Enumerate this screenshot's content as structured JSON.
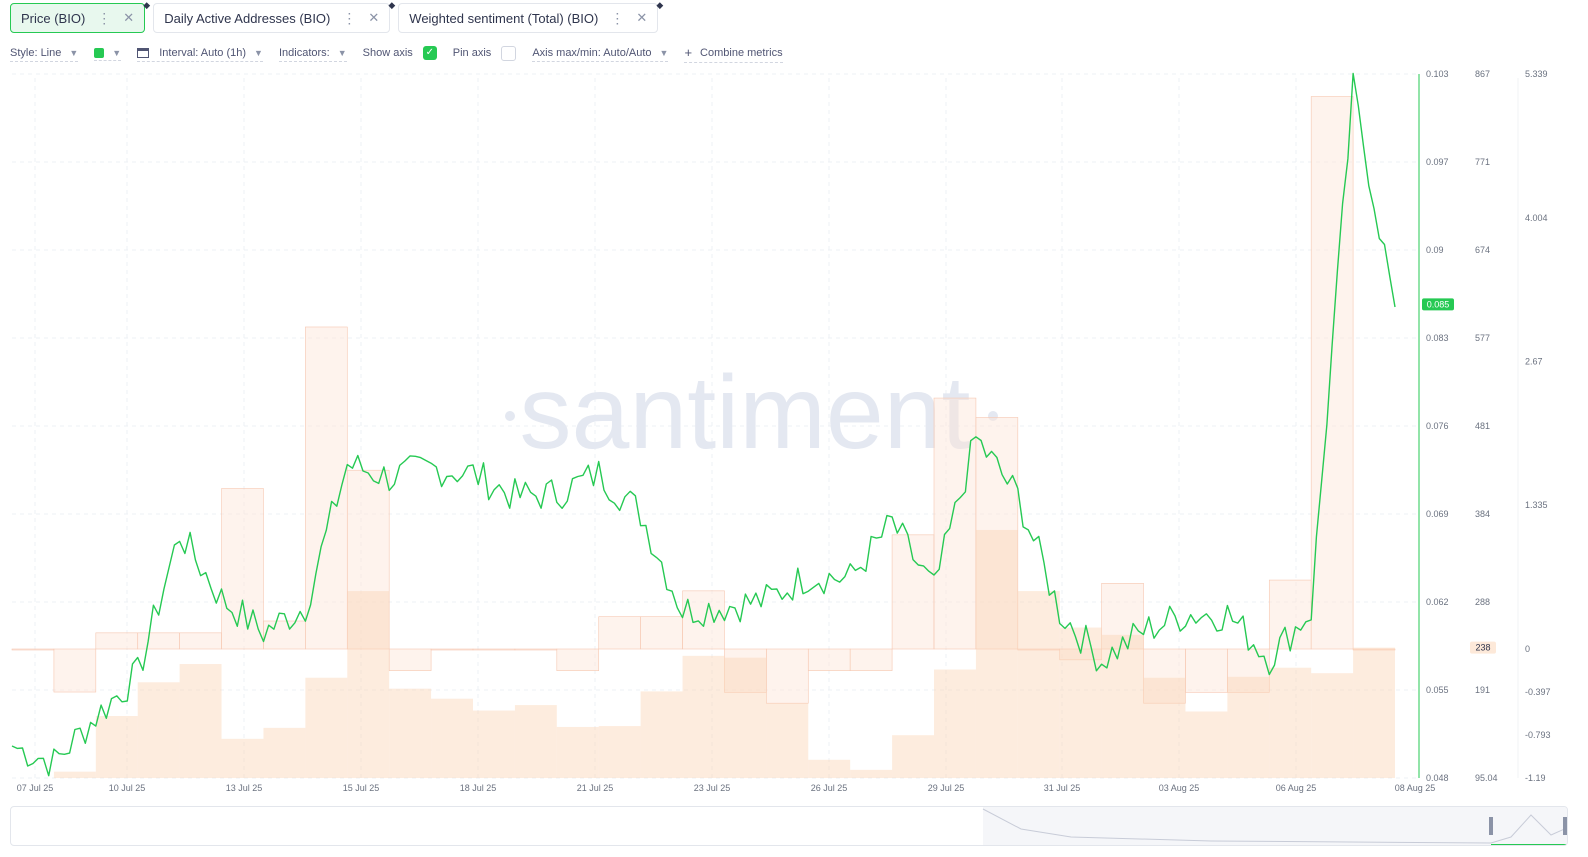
{
  "tabs": [
    {
      "label": "Price (BIO)"
    },
    {
      "label": "Daily Active Addresses (BIO)"
    },
    {
      "label": "Weighted sentiment (Total) (BIO)"
    }
  ],
  "toolbar": {
    "style": "Style: Line",
    "interval": "Interval: Auto (1h)",
    "indicators": "Indicators:",
    "show_axis": "Show axis",
    "pin_axis": "Pin axis",
    "axis_maxmin": "Axis max/min: Auto/Auto",
    "combine": "Combine metrics"
  },
  "colors": {
    "price": "#26c953",
    "sentiment_fill": "#fde4d6",
    "addresses_fill": "#fbd4b5",
    "watermark": "#e4e8f1"
  },
  "watermark": "santiment",
  "chart_data": {
    "type": "line",
    "x_ticks": [
      "07 Jul 25",
      "10 Jul 25",
      "13 Jul 25",
      "15 Jul 25",
      "18 Jul 25",
      "21 Jul 25",
      "23 Jul 25",
      "26 Jul 25",
      "29 Jul 25",
      "31 Jul 25",
      "03 Aug 25",
      "06 Aug 25",
      "08 Aug 25"
    ],
    "price_axis": {
      "ticks": [
        "0.103",
        "0.097",
        "0.09",
        "0.083",
        "0.076",
        "0.069",
        "0.062",
        "0.055",
        "0.048"
      ],
      "current": "0.085",
      "range": [
        0.048,
        0.103
      ]
    },
    "addresses_axis": {
      "ticks": [
        "867",
        "771",
        "674",
        "577",
        "481",
        "384",
        "288",
        "191",
        "95.04"
      ],
      "current": "238",
      "range": [
        95.04,
        867
      ]
    },
    "sentiment_axis": {
      "ticks": [
        "5.339",
        "4.004",
        "2.67",
        "1.335",
        "0",
        "-0.397",
        "-0.793",
        "-1.19"
      ],
      "range": [
        -1.19,
        5.339
      ]
    },
    "series": [
      {
        "name": "Price (BIO)",
        "x": [
          "07 Jul",
          "08 Jul",
          "09 Jul",
          "10 Jul",
          "11 Jul",
          "12 Jul",
          "13 Jul",
          "14 Jul",
          "15 Jul",
          "16 Jul",
          "17 Jul",
          "18 Jul",
          "19 Jul",
          "20 Jul",
          "21 Jul",
          "22 Jul",
          "23 Jul",
          "24 Jul",
          "25 Jul",
          "26 Jul",
          "27 Jul",
          "28 Jul",
          "29 Jul",
          "30 Jul",
          "31 Jul",
          "01 Aug",
          "02 Aug",
          "03 Aug",
          "04 Aug",
          "05 Aug",
          "06 Aug",
          "07 Aug",
          "07 Aug",
          "08 Aug"
        ],
        "values": [
          0.0505,
          0.0492,
          0.0528,
          0.0561,
          0.0671,
          0.062,
          0.0594,
          0.0614,
          0.0725,
          0.0715,
          0.0722,
          0.0718,
          0.07,
          0.0702,
          0.0718,
          0.0687,
          0.0611,
          0.0614,
          0.0619,
          0.0638,
          0.0636,
          0.0679,
          0.0627,
          0.0745,
          0.07,
          0.061,
          0.0572,
          0.0595,
          0.0608,
          0.0608,
          0.0574,
          0.0611,
          0.1018,
          0.0848
        ]
      },
      {
        "name": "Daily Active Addresses (BIO)",
        "x": [
          "07 Jul",
          "08 Jul",
          "09 Jul",
          "10 Jul",
          "11 Jul",
          "12 Jul",
          "13 Jul",
          "14 Jul",
          "15 Jul",
          "16 Jul",
          "17 Jul",
          "18 Jul",
          "19 Jul",
          "20 Jul",
          "21 Jul",
          "22 Jul",
          "23 Jul",
          "24 Jul",
          "25 Jul",
          "26 Jul",
          "27 Jul",
          "28 Jul",
          "29 Jul",
          "30 Jul",
          "31 Jul",
          "01 Aug",
          "02 Aug",
          "03 Aug",
          "04 Aug",
          "05 Aug",
          "06 Aug",
          "07 Aug",
          "08 Aug"
        ],
        "values": [
          95.04,
          102,
          163,
          200,
          220,
          138,
          150,
          205,
          300,
          193,
          182,
          169,
          175,
          151,
          152,
          190,
          229,
          227,
          177,
          115,
          104,
          142,
          214,
          367,
          300,
          260,
          252,
          205,
          168,
          206,
          216,
          210,
          238
        ]
      },
      {
        "name": "Weighted sentiment (Total) (BIO)",
        "x": [
          "07 Jul",
          "08 Jul",
          "09 Jul",
          "10 Jul",
          "11 Jul",
          "12 Jul",
          "13 Jul",
          "14 Jul",
          "15 Jul",
          "16 Jul",
          "17 Jul",
          "18 Jul",
          "19 Jul",
          "20 Jul",
          "21 Jul",
          "22 Jul",
          "23 Jul",
          "24 Jul",
          "25 Jul",
          "26 Jul",
          "27 Jul",
          "28 Jul",
          "29 Jul",
          "30 Jul",
          "31 Jul",
          "01 Aug",
          "02 Aug",
          "03 Aug",
          "04 Aug",
          "05 Aug",
          "06 Aug",
          "07 Aug",
          "08 Aug"
        ],
        "values": [
          0,
          -0.397,
          0.15,
          0.15,
          0.15,
          1.49,
          0.26,
          2.99,
          1.66,
          -0.2,
          0,
          0,
          0,
          -0.2,
          0.3,
          0.3,
          0.54,
          -0.4,
          -0.5,
          -0.2,
          -0.2,
          1.06,
          2.33,
          2.15,
          0,
          -0.1,
          0.61,
          -0.5,
          -0.4,
          -0.4,
          0.64,
          5.13,
          0
        ]
      }
    ]
  }
}
